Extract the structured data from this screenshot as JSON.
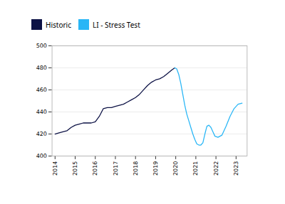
{
  "chart_data": {
    "type": "line",
    "series": [
      {
        "name": "Historic",
        "color": "#0d1245",
        "x": [
          2014.0,
          2014.2,
          2014.4,
          2014.6,
          2014.8,
          2015.0,
          2015.2,
          2015.4,
          2015.6,
          2015.8,
          2016.0,
          2016.2,
          2016.4,
          2016.6,
          2016.8,
          2017.0,
          2017.2,
          2017.4,
          2017.6,
          2017.8,
          2018.0,
          2018.2,
          2018.4,
          2018.6,
          2018.8,
          2019.0,
          2019.2,
          2019.4,
          2019.6,
          2019.8,
          2019.95
        ],
        "values": [
          420,
          421,
          422,
          423,
          426,
          428,
          429,
          430,
          430,
          430,
          431,
          436,
          443,
          444,
          444,
          445,
          446,
          447,
          449,
          451,
          453,
          456,
          460,
          464,
          467,
          469,
          470,
          472,
          475,
          478,
          480
        ]
      },
      {
        "name": "LI - Stress Test",
        "color": "#29b6f6",
        "x": [
          2019.95,
          2020.05,
          2020.15,
          2020.25,
          2020.35,
          2020.45,
          2020.55,
          2020.65,
          2020.75,
          2020.85,
          2020.95,
          2021.05,
          2021.15,
          2021.25,
          2021.35,
          2021.45,
          2021.55,
          2021.65,
          2021.75,
          2021.85,
          2021.95,
          2022.1,
          2022.3,
          2022.5,
          2022.7,
          2022.9,
          2023.1,
          2023.3
        ],
        "values": [
          480,
          479,
          474,
          466,
          456,
          446,
          438,
          432,
          426,
          420,
          415,
          411,
          410,
          410,
          412,
          420,
          427,
          428,
          426,
          422,
          418,
          417,
          419,
          427,
          436,
          443,
          447,
          448
        ]
      }
    ],
    "xlim": [
      2013.85,
      2023.55
    ],
    "xticks": [
      2014,
      2015,
      2016,
      2017,
      2018,
      2019,
      2020,
      2021,
      2022,
      2023
    ],
    "ylim": [
      400,
      500
    ],
    "yticks": [
      400,
      420,
      440,
      460,
      480,
      500
    ],
    "grid": "y",
    "legend": "upper left"
  }
}
